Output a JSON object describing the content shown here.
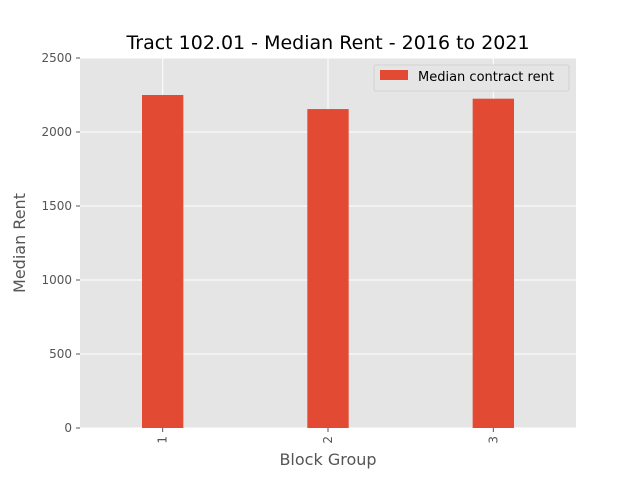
{
  "chart_data": {
    "type": "bar",
    "title": "Tract 102.01 - Median Rent - 2016 to 2021",
    "xlabel": "Block Group",
    "ylabel": "Median Rent",
    "categories": [
      "1",
      "2",
      "3"
    ],
    "series": [
      {
        "name": "Median contract rent",
        "values": [
          2250,
          2155,
          2225
        ],
        "color": "#e24a33"
      }
    ],
    "ylim": [
      0,
      2500
    ],
    "yticks": [
      0,
      500,
      1000,
      1500,
      2000,
      2500
    ],
    "ytick_labels": [
      "0",
      "500",
      "1000",
      "1500",
      "2000",
      "2500"
    ],
    "grid": true,
    "style": "ggplot",
    "background_color": "#e5e5e5",
    "grid_color": "#ffffff",
    "legend_position": "top-right",
    "xtick_rotation": "vertical"
  }
}
